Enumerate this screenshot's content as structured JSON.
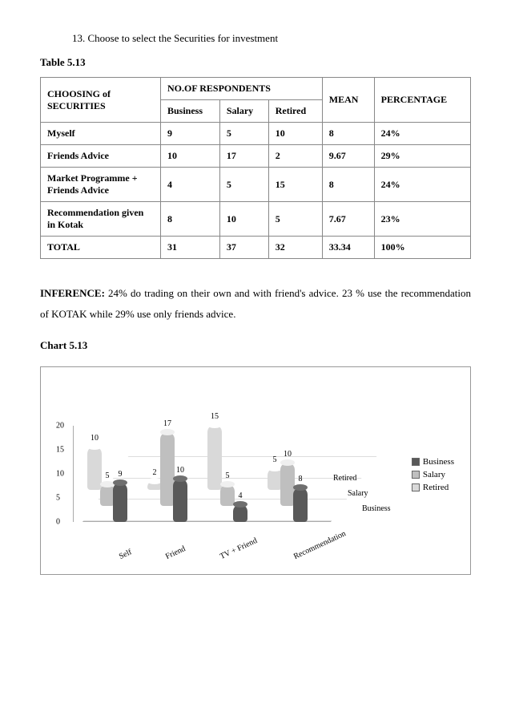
{
  "list_item": "13. Choose to select the Securities for investment",
  "table_caption": "Table 5.13",
  "table": {
    "header_main": "CHOOSING of SECURITIES",
    "header_group": "NO.OF RESPONDENTS",
    "sub_headers": [
      "Business",
      "Salary",
      "Retired"
    ],
    "header_mean": "MEAN",
    "header_pct": "PERCENTAGE",
    "rows": [
      {
        "label": "Myself",
        "v": [
          "9",
          "5",
          "10"
        ],
        "mean": "8",
        "pct": "24%"
      },
      {
        "label": "Friends Advice",
        "v": [
          "10",
          "17",
          "2"
        ],
        "mean": "9.67",
        "pct": "29%"
      },
      {
        "label": "Market Programme + Friends Advice",
        "v": [
          "4",
          "5",
          "15"
        ],
        "mean": "8",
        "pct": "24%"
      },
      {
        "label": "Recommendation given in Kotak",
        "v": [
          "8",
          "10",
          "5"
        ],
        "mean": "7.67",
        "pct": "23%"
      }
    ],
    "total": {
      "label": "TOTAL",
      "v": [
        "31",
        "37",
        "32"
      ],
      "mean": "33.34",
      "pct": "100%"
    }
  },
  "inference_label": "INFERENCE:",
  "inference_text": " 24% do trading on their own and with friend's advice. 23 % use the recommendation of KOTAK while 29% use only friends advice.",
  "chart_caption": "Chart 5.13",
  "chart": {
    "type": "3d-cylinder-bar",
    "y_ticks": [
      0,
      5,
      10,
      15,
      20
    ],
    "ymax": 20,
    "categories": [
      "Self",
      "Friend",
      "TV + Friend",
      "Recommendation"
    ],
    "depth_series": [
      "Business",
      "Salary",
      "Retired"
    ],
    "series_colors": {
      "Business": "#595959",
      "Salary": "#bfbfbf",
      "Retired": "#d9d9d9"
    },
    "floor_color": "#eeeeee",
    "grid_color": "#dddddd",
    "label_fontsize": 10,
    "data": {
      "Business": [
        9,
        10,
        4,
        8
      ],
      "Salary": [
        5,
        17,
        5,
        10
      ],
      "Retired": [
        10,
        2,
        15,
        5
      ]
    },
    "legend": [
      "Business",
      "Salary",
      "Retired"
    ]
  }
}
